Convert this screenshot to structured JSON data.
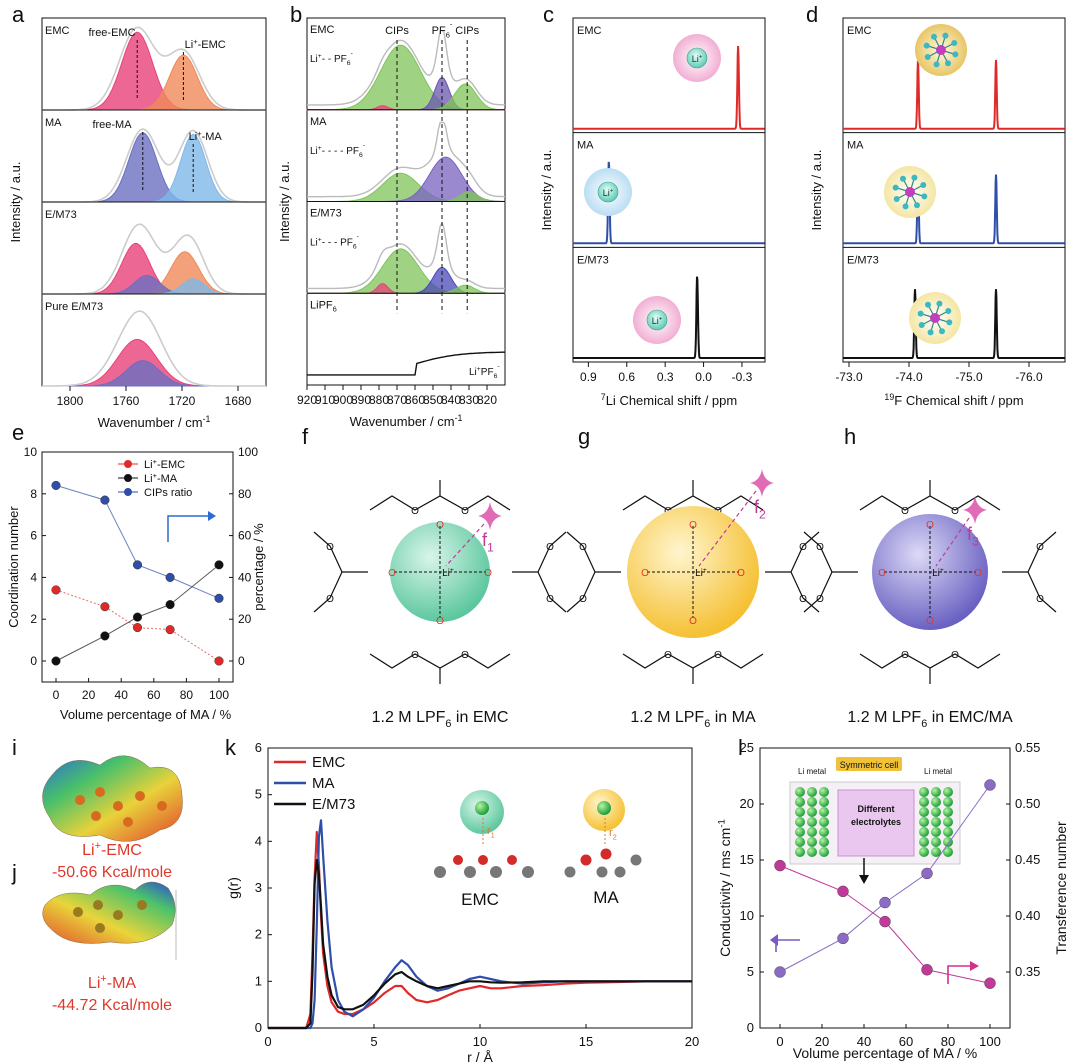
{
  "panel_letters": [
    "a",
    "b",
    "c",
    "d",
    "e",
    "f",
    "g",
    "h",
    "i",
    "j",
    "k",
    "l"
  ],
  "colors": {
    "red": "#e02a2a",
    "blue": "#2f4ea8",
    "black": "#111111",
    "pink": "#e8417a",
    "orange": "#f08a5a",
    "purple": "#6b6fc0",
    "lightblue": "#7fb8e8",
    "green": "#7fc45a",
    "magenta": "#c03a9a",
    "mol_purple": "#8b6bc4",
    "label_red": "#e0382a",
    "li_green": "#6fd2b0",
    "ma_yellow": "#f7c948",
    "emc_ma_purple": "#7a73c9"
  },
  "panel_a": {
    "ylabel": "Intensity / a.u.",
    "xlabel": "Wavenumber / cm-1",
    "xticks": [
      "1800",
      "1760",
      "1720",
      "1680"
    ],
    "rows": [
      {
        "name": "EMC",
        "peak_labels": [
          "free-EMC",
          "Li+-EMC"
        ]
      },
      {
        "name": "MA",
        "peak_labels": [
          "free-MA",
          "Li+-MA"
        ]
      },
      {
        "name": "E/M73",
        "peak_labels": []
      },
      {
        "name": "Pure E/M73",
        "peak_labels": []
      }
    ]
  },
  "panel_b": {
    "ylabel": "Intensity / a.u.",
    "xlabel": "Wavenumber / cm-1",
    "xticks": [
      "920",
      "910",
      "900",
      "890",
      "880",
      "870",
      "860",
      "850",
      "840",
      "830",
      "820"
    ],
    "top_labels": [
      "CIPs",
      "PF6-",
      "CIPs"
    ],
    "rows": [
      {
        "name": "EMC",
        "note": "Li+- - PF6-"
      },
      {
        "name": "MA",
        "note": "Li+- - - - PF6-"
      },
      {
        "name": "E/M73",
        "note": "Li+- - - PF6-"
      },
      {
        "name": "LiPF6",
        "note": "Li+PF6-"
      }
    ]
  },
  "panel_c": {
    "ylabel": "Intensity / a.u.",
    "xlabel": "7Li Chemical shift / ppm",
    "xticks": [
      "0.9",
      "0.6",
      "0.3",
      "0.0",
      "-0.3"
    ],
    "rows": [
      {
        "name": "EMC",
        "peak_ppm": -0.27,
        "color": "#e02a2a"
      },
      {
        "name": "MA",
        "peak_ppm": 0.74,
        "color": "#2f4ea8"
      },
      {
        "name": "E/M73",
        "peak_ppm": 0.05,
        "color": "#111111"
      }
    ],
    "badge": "Li+"
  },
  "panel_d": {
    "ylabel": "Intensity / a.u.",
    "xlabel": "19F Chemical shift / ppm",
    "xticks": [
      "-73.0",
      "-74.0",
      "-75.0",
      "-76.0"
    ],
    "rows": [
      {
        "name": "EMC",
        "peaks_ppm": [
          -74.15,
          -75.45
        ],
        "color": "#e02a2a"
      },
      {
        "name": "MA",
        "peaks_ppm": [
          -74.15,
          -75.45
        ],
        "color": "#2f4ea8"
      },
      {
        "name": "E/M73",
        "peaks_ppm": [
          -74.1,
          -75.45
        ],
        "color": "#111111"
      }
    ]
  },
  "chart_data": [
    {
      "type": "scatter",
      "panel": "e",
      "x": [
        0,
        30,
        50,
        70,
        100
      ],
      "xticks": [
        0,
        20,
        40,
        60,
        80,
        100
      ],
      "xlabel": "Volume percentage of MA / %",
      "ylabel": "Coordination number",
      "ylabel_right": "percentage / %",
      "ylim": [
        0,
        10
      ],
      "ylim_right": [
        0,
        100
      ],
      "series": [
        {
          "name": "Li+-EMC",
          "values": [
            3.4,
            2.6,
            1.6,
            1.5,
            0.0
          ],
          "axis": "left",
          "color": "#e02a2a"
        },
        {
          "name": "Li+-MA",
          "values": [
            0.0,
            1.2,
            2.1,
            2.7,
            4.6
          ],
          "axis": "left",
          "color": "#111111"
        },
        {
          "name": "CIPs ratio",
          "values": [
            84,
            77,
            46,
            40,
            30
          ],
          "axis": "right",
          "color": "#2f4ea8"
        }
      ],
      "legend": "top-right"
    },
    {
      "type": "line",
      "panel": "k",
      "xlabel": "r / Å",
      "ylabel": "g(r)",
      "xlim": [
        0,
        20
      ],
      "ylim": [
        0,
        6
      ],
      "xticks": [
        0,
        5,
        10,
        15,
        20
      ],
      "yticks": [
        0,
        1,
        2,
        3,
        4,
        5,
        6
      ],
      "x": [
        0,
        1,
        1.8,
        2.0,
        2.1,
        2.2,
        2.3,
        2.4,
        2.5,
        2.6,
        2.8,
        3.0,
        3.3,
        3.6,
        4.0,
        4.5,
        5.0,
        5.5,
        6.0,
        6.3,
        6.6,
        7.0,
        7.5,
        8.0,
        8.5,
        9.0,
        9.5,
        10.0,
        10.5,
        11.0,
        12.0,
        13.0,
        14.0,
        15.0,
        16.0,
        17.0,
        18.0,
        19.0,
        20.0
      ],
      "series": [
        {
          "name": "EMC",
          "color": "#e02a2a",
          "values": [
            0,
            0,
            0,
            0.3,
            1.6,
            3.2,
            4.2,
            3.5,
            2.4,
            1.6,
            0.9,
            0.55,
            0.35,
            0.3,
            0.3,
            0.4,
            0.55,
            0.75,
            0.9,
            0.9,
            0.75,
            0.6,
            0.55,
            0.6,
            0.7,
            0.8,
            0.85,
            0.9,
            0.85,
            0.85,
            0.9,
            0.92,
            0.95,
            0.97,
            0.98,
            0.99,
            1.0,
            1.0,
            1.0
          ]
        },
        {
          "name": "MA",
          "color": "#2f4ea8",
          "values": [
            0,
            0,
            0,
            0,
            0.1,
            0.6,
            2.2,
            4.1,
            4.45,
            3.7,
            2.3,
            1.3,
            0.6,
            0.35,
            0.25,
            0.4,
            0.65,
            1.0,
            1.3,
            1.45,
            1.35,
            1.1,
            0.9,
            0.8,
            0.85,
            0.95,
            1.05,
            1.1,
            1.05,
            1.0,
            0.95,
            0.98,
            1.0,
            1.0,
            1.0,
            1.0,
            1.0,
            1.0,
            1.0
          ]
        },
        {
          "name": "E/M73",
          "color": "#111111",
          "values": [
            0,
            0,
            0,
            0.1,
            1.2,
            3.1,
            3.6,
            3.3,
            2.6,
            1.8,
            1.1,
            0.7,
            0.45,
            0.4,
            0.4,
            0.5,
            0.7,
            0.95,
            1.15,
            1.2,
            1.1,
            1.0,
            0.9,
            0.85,
            0.9,
            0.95,
            1.0,
            1.0,
            0.98,
            0.97,
            0.98,
            1.0,
            1.0,
            1.0,
            1.0,
            1.0,
            1.0,
            1.0,
            1.0
          ]
        }
      ],
      "annotations": [
        "EMC",
        "MA",
        "r1",
        "r2"
      ],
      "legend": "top-left"
    },
    {
      "type": "scatter",
      "panel": "l",
      "x": [
        0,
        30,
        50,
        70,
        100
      ],
      "xticks": [
        0,
        20,
        40,
        60,
        80,
        100
      ],
      "xlabel": "Volume percentage of MA / %",
      "ylabel": "Conductivity / ms cm-1",
      "ylabel_right": "Transference number",
      "ylim": [
        0,
        25
      ],
      "ylim_right": [
        0.3,
        0.55
      ],
      "yticks": [
        0,
        5,
        10,
        15,
        20,
        25
      ],
      "yticks_right": [
        "0.35",
        "0.40",
        "0.45",
        "0.50",
        "0.55"
      ],
      "series": [
        {
          "name": "Conductivity",
          "values": [
            5.0,
            8.0,
            11.2,
            13.8,
            21.7
          ],
          "axis": "left",
          "color": "#8b6bc4"
        },
        {
          "name": "Transference number",
          "values": [
            0.445,
            0.422,
            0.395,
            0.352,
            0.34
          ],
          "axis": "right",
          "color": "#c03a9a"
        }
      ],
      "inset": {
        "title": "Symmetric cell",
        "left": "Li metal",
        "right": "Li metal",
        "center": "Different electrolytes"
      }
    }
  ],
  "panel_fgh": [
    {
      "caption": "1.2 M LPF6 in  EMC",
      "factor": "f1"
    },
    {
      "caption": "1.2 M LPF6 in MA",
      "factor": "f2"
    },
    {
      "caption": "1.2 M LPF6 in EMC/MA",
      "factor": "f3"
    }
  ],
  "panel_ij": [
    {
      "name": "Li+-EMC",
      "energy": "-50.66 Kcal/mole"
    },
    {
      "name": "Li+-MA",
      "energy": "-44.72 Kcal/mole"
    }
  ]
}
